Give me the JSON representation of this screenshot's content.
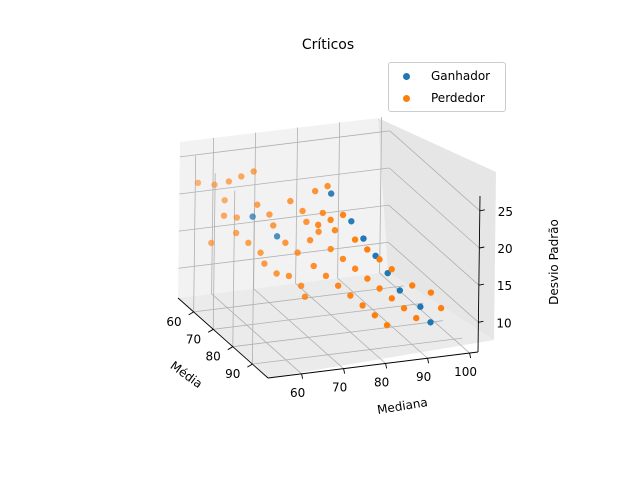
{
  "chart_data": {
    "type": "scatter",
    "title": "Críticos",
    "xlabel": "Média",
    "ylabel": "Mediana",
    "zlabel": "Desvio Padrão",
    "x_ticks": [
      "60",
      "70",
      "80",
      "90"
    ],
    "y_ticks": [
      "60",
      "70",
      "80",
      "90",
      "100"
    ],
    "z_ticks": [
      "10",
      "15",
      "20",
      "25"
    ],
    "legend_position": "upper right",
    "grid": true,
    "colors": {
      "Ganhador": "#1f77b4",
      "Perdedor": "#ff7f0e"
    },
    "series": [
      {
        "name": "Ganhador",
        "points": [
          [
            80,
            75,
            25
          ],
          [
            84,
            78,
            22
          ],
          [
            86,
            80,
            20
          ],
          [
            88,
            82,
            18
          ],
          [
            90,
            84,
            16
          ],
          [
            92,
            86,
            14
          ],
          [
            94,
            90,
            12
          ],
          [
            95,
            92,
            10
          ],
          [
            68,
            62,
            20
          ],
          [
            72,
            66,
            18
          ]
        ]
      },
      {
        "name": "Perdedor",
        "points": [
          [
            55,
            55,
            22
          ],
          [
            57,
            58,
            22
          ],
          [
            60,
            60,
            23
          ],
          [
            62,
            62,
            24
          ],
          [
            64,
            64,
            25
          ],
          [
            58,
            60,
            20
          ],
          [
            60,
            62,
            18
          ],
          [
            66,
            64,
            21
          ],
          [
            68,
            66,
            20
          ],
          [
            70,
            66,
            19
          ],
          [
            72,
            68,
            17
          ],
          [
            74,
            70,
            16
          ],
          [
            76,
            72,
            18
          ],
          [
            78,
            72,
            15
          ],
          [
            80,
            74,
            14
          ],
          [
            82,
            76,
            13
          ],
          [
            84,
            78,
            12
          ],
          [
            86,
            80,
            11
          ],
          [
            88,
            82,
            10
          ],
          [
            90,
            84,
            9
          ],
          [
            70,
            70,
            22
          ],
          [
            72,
            72,
            21
          ],
          [
            74,
            72,
            20
          ],
          [
            76,
            74,
            19
          ],
          [
            78,
            76,
            17
          ],
          [
            80,
            78,
            16
          ],
          [
            82,
            80,
            15
          ],
          [
            84,
            82,
            14
          ],
          [
            86,
            84,
            13
          ],
          [
            88,
            86,
            12
          ],
          [
            90,
            88,
            11
          ],
          [
            92,
            90,
            10
          ],
          [
            64,
            60,
            17
          ],
          [
            66,
            62,
            16
          ],
          [
            68,
            64,
            15
          ],
          [
            70,
            64,
            14
          ],
          [
            72,
            66,
            13
          ],
          [
            74,
            68,
            13
          ],
          [
            76,
            70,
            12
          ],
          [
            78,
            70,
            11
          ],
          [
            80,
            72,
            21
          ],
          [
            82,
            74,
            22
          ],
          [
            84,
            76,
            23
          ],
          [
            86,
            78,
            20
          ],
          [
            88,
            80,
            19
          ],
          [
            90,
            82,
            18
          ],
          [
            92,
            84,
            17
          ],
          [
            94,
            88,
            15
          ],
          [
            95,
            92,
            14
          ],
          [
            96,
            94,
            12
          ],
          [
            62,
            58,
            19
          ],
          [
            60,
            56,
            15
          ],
          [
            74,
            74,
            24
          ],
          [
            76,
            76,
            25
          ],
          [
            78,
            74,
            22
          ],
          [
            80,
            76,
            20
          ]
        ]
      }
    ]
  }
}
